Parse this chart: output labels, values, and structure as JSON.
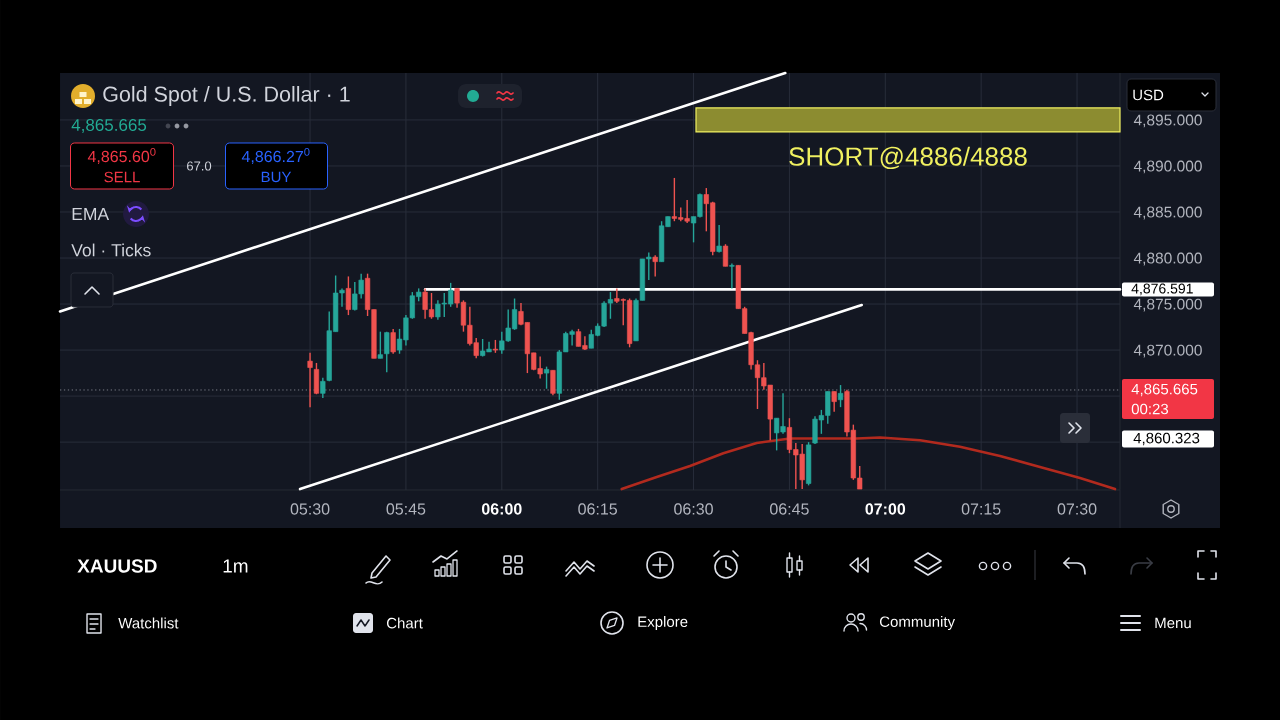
{
  "chart_data": {
    "type": "candlestick",
    "title": "Gold Spot / U.S. Dollar · 1",
    "xlim": [
      4.848,
      7.612
    ],
    "ylim": [
      4854.8,
      4900.1
    ],
    "xticks": [
      {
        "value": 5.5,
        "label": "05:30"
      },
      {
        "value": 5.75,
        "label": "05:45"
      },
      {
        "value": 6,
        "label": "06:00"
      },
      {
        "value": 6.25,
        "label": "06:15"
      },
      {
        "value": 6.5,
        "label": "06:30"
      },
      {
        "value": 6.75,
        "label": "06:45"
      },
      {
        "value": 7,
        "label": "07:00"
      },
      {
        "value": 7.25,
        "label": "07:15"
      },
      {
        "value": 7.5,
        "label": "07:30"
      }
    ],
    "yticks": [
      {
        "value": 4860,
        "label": null
      },
      {
        "value": 4865,
        "label": null
      },
      {
        "value": 4870,
        "label": "4,870.000"
      },
      {
        "value": 4875,
        "label": "4,875.000"
      },
      {
        "value": 4880,
        "label": "4,880.000"
      },
      {
        "value": 4885,
        "label": "4,885.000"
      },
      {
        "value": 4890,
        "label": "4,890.000"
      },
      {
        "value": 4895,
        "label": "4,895.000"
      }
    ],
    "grid": true,
    "x": [
      5.5,
      5.5167,
      5.5333,
      5.55,
      5.5667,
      5.5833,
      5.6,
      5.6167,
      5.6333,
      5.65,
      5.6667,
      5.6833,
      5.7,
      5.7167,
      5.7333,
      5.75,
      5.7667,
      5.7833,
      5.8,
      5.8167,
      5.8333,
      5.85,
      5.8667,
      5.8833,
      5.9,
      5.9167,
      5.9333,
      5.95,
      5.9667,
      5.9833,
      6.0,
      6.0167,
      6.0333,
      6.05,
      6.0667,
      6.0833,
      6.1,
      6.1167,
      6.1333,
      6.15,
      6.1667,
      6.1833,
      6.2,
      6.2167,
      6.2333,
      6.25,
      6.2667,
      6.2833,
      6.3,
      6.3167,
      6.3333,
      6.35,
      6.3667,
      6.3833,
      6.4,
      6.4167,
      6.4333,
      6.45,
      6.4667,
      6.4833,
      6.5,
      6.5167,
      6.5333,
      6.55,
      6.5667,
      6.5833,
      6.6,
      6.6167,
      6.6333,
      6.65,
      6.6667,
      6.6833,
      6.7,
      6.7167,
      6.7333,
      6.75,
      6.7667,
      6.7833,
      6.8,
      6.8167,
      6.8333,
      6.85,
      6.8667,
      6.8833,
      6.9,
      6.9167,
      6.9333
    ],
    "ohlc": [
      [
        4868.8,
        4869.7,
        4863.8,
        4868.1
      ],
      [
        4867.9,
        4868.6,
        4865.2,
        4865.3
      ],
      [
        4865.3,
        4867.0,
        4864.8,
        4866.6
      ],
      [
        4866.7,
        4874.2,
        4866.6,
        4872.1
      ],
      [
        4872.0,
        4878.1,
        4872.0,
        4876.2
      ],
      [
        4876.2,
        4876.7,
        4874.7,
        4876.5
      ],
      [
        4876.7,
        4878.0,
        4873.8,
        4874.4
      ],
      [
        4874.4,
        4877.4,
        4874.3,
        4876.1
      ],
      [
        4876.1,
        4878.3,
        4875.6,
        4877.6
      ],
      [
        4877.8,
        4878.3,
        4873.7,
        4874.4
      ],
      [
        4874.4,
        4874.4,
        4869.1,
        4869.1
      ],
      [
        4869.1,
        4872.0,
        4869.1,
        4869.5
      ],
      [
        4869.6,
        4872.0,
        4867.6,
        4871.9
      ],
      [
        4871.9,
        4872.3,
        4869.6,
        4869.8
      ],
      [
        4870.0,
        4872.3,
        4869.6,
        4871.2
      ],
      [
        4871.1,
        4873.8,
        4870.5,
        4873.5
      ],
      [
        4873.5,
        4876.3,
        4873.4,
        4875.9
      ],
      [
        4875.8,
        4876.7,
        4875.3,
        4876.3
      ],
      [
        4876.3,
        4876.7,
        4873.4,
        4874.4
      ],
      [
        4874.4,
        4876.2,
        4873.4,
        4873.6
      ],
      [
        4873.6,
        4875.4,
        4873.3,
        4875.0
      ],
      [
        4875.0,
        4876.2,
        4873.6,
        4875.1
      ],
      [
        4875.0,
        4877.3,
        4874.7,
        4876.5
      ],
      [
        4876.7,
        4876.7,
        4874.6,
        4875.1
      ],
      [
        4875.2,
        4875.4,
        4872.0,
        4872.7
      ],
      [
        4872.7,
        4874.7,
        4870.5,
        4870.7
      ],
      [
        4870.8,
        4871.3,
        4869.1,
        4869.4
      ],
      [
        4869.4,
        4871.2,
        4869.3,
        4869.9
      ],
      [
        4869.8,
        4870.9,
        4869.8,
        4870.1
      ],
      [
        4870.1,
        4871.1,
        4869.7,
        4870.0
      ],
      [
        4870.0,
        4872.0,
        4869.6,
        4871.0
      ],
      [
        4871.0,
        4874.4,
        4870.9,
        4872.4
      ],
      [
        4872.3,
        4875.6,
        4872.2,
        4874.4
      ],
      [
        4874.2,
        4875.1,
        4872.7,
        4872.8
      ],
      [
        4873.0,
        4873.0,
        4867.5,
        4869.6
      ],
      [
        4869.7,
        4869.7,
        4867.8,
        4867.9
      ],
      [
        4868.0,
        4869.3,
        4866.9,
        4867.4
      ],
      [
        4867.5,
        4868.2,
        4865.8,
        4867.9
      ],
      [
        4867.8,
        4867.8,
        4865.1,
        4865.3
      ],
      [
        4865.3,
        4870.0,
        4864.6,
        4869.8
      ],
      [
        4869.8,
        4872.0,
        4869.8,
        4871.8
      ],
      [
        4871.7,
        4872.2,
        4870.5,
        4872.0
      ],
      [
        4872.0,
        4872.3,
        4870.4,
        4870.4
      ],
      [
        4870.5,
        4871.5,
        4870.0,
        4870.1
      ],
      [
        4870.2,
        4872.2,
        4870.2,
        4871.7
      ],
      [
        4871.6,
        4872.9,
        4871.5,
        4872.6
      ],
      [
        4872.6,
        4875.3,
        4872.5,
        4875.1
      ],
      [
        4875.1,
        4876.3,
        4873.4,
        4875.5
      ],
      [
        4875.6,
        4876.7,
        4875.1,
        4875.3
      ],
      [
        4875.5,
        4875.6,
        4872.7,
        4875.4
      ],
      [
        4875.4,
        4875.6,
        4870.3,
        4870.7
      ],
      [
        4871.0,
        4875.6,
        4871.0,
        4875.4
      ],
      [
        4875.4,
        4879.9,
        4875.4,
        4879.9
      ],
      [
        4879.9,
        4880.6,
        4877.6,
        4880.1
      ],
      [
        4880.1,
        4880.3,
        4878.0,
        4879.6
      ],
      [
        4879.6,
        4884.0,
        4879.6,
        4883.5
      ],
      [
        4883.4,
        4884.5,
        4883.4,
        4884.5
      ],
      [
        4884.5,
        4888.7,
        4884.0,
        4884.3
      ],
      [
        4884.4,
        4885.5,
        4884.0,
        4884.2
      ],
      [
        4884.3,
        4886.3,
        4883.8,
        4884.0
      ],
      [
        4883.8,
        4884.5,
        4881.7,
        4884.5
      ],
      [
        4884.5,
        4887.0,
        4884.4,
        4886.9
      ],
      [
        4886.9,
        4887.6,
        4882.9,
        4885.9
      ],
      [
        4886.0,
        4886.1,
        4880.3,
        4880.7
      ],
      [
        4880.7,
        4883.6,
        4880.6,
        4881.3
      ],
      [
        4881.3,
        4881.5,
        4879.1,
        4879.1
      ],
      [
        4879.1,
        4879.4,
        4876.7,
        4879.2
      ],
      [
        4879.2,
        4879.2,
        4874.5,
        4874.5
      ],
      [
        4874.5,
        4874.7,
        4871.8,
        4871.8
      ],
      [
        4871.9,
        4872.0,
        4867.9,
        4868.4
      ],
      [
        4868.4,
        4868.9,
        4863.6,
        4867.0
      ],
      [
        4867.0,
        4868.6,
        4865.7,
        4866.1
      ],
      [
        4866.2,
        4866.2,
        4860.2,
        4862.5
      ],
      [
        4861.0,
        4862.6,
        4859.1,
        4862.6
      ],
      [
        4861.1,
        4865.3,
        4860.9,
        4861.7
      ],
      [
        4861.6,
        4862.6,
        4858.8,
        4859.2
      ],
      [
        4859.2,
        4859.9,
        4854.9,
        4858.6
      ],
      [
        4858.7,
        4859.8,
        4854.9,
        4855.9
      ],
      [
        4855.5,
        4860.0,
        4855.3,
        4859.7
      ],
      [
        4859.9,
        4862.8,
        4859.8,
        4862.5
      ],
      [
        4862.4,
        4863.5,
        4860.9,
        4862.9
      ],
      [
        4862.9,
        4865.5,
        4862.0,
        4865.5
      ],
      [
        4865.5,
        4865.5,
        4863.3,
        4864.4
      ],
      [
        4864.6,
        4866.2,
        4863.8,
        4865.3
      ],
      [
        4865.5,
        4865.7,
        4860.6,
        4861.1
      ],
      [
        4861.3,
        4861.9,
        4855.9,
        4856.1
      ],
      [
        4856.1,
        4857.4,
        4854.9,
        4854.9
      ]
    ],
    "colors": [
      "#ef5350",
      "#ef5350",
      "#26a69a",
      "#26a69a",
      "#26a69a",
      "#26a69a",
      "#ef5350",
      "#26a69a",
      "#26a69a",
      "#ef5350",
      "#ef5350",
      "#26a69a",
      "#26a69a",
      "#ef5350",
      "#26a69a",
      "#26a69a",
      "#26a69a",
      "#26a69a",
      "#ef5350",
      "#ef5350",
      "#26a69a",
      "#26a69a",
      "#26a69a",
      "#ef5350",
      "#ef5350",
      "#ef5350",
      "#ef5350",
      "#26a69a",
      "#26a69a",
      "#ef5350",
      "#26a69a",
      "#26a69a",
      "#26a69a",
      "#ef5350",
      "#ef5350",
      "#ef5350",
      "#ef5350",
      "#26a69a",
      "#ef5350",
      "#26a69a",
      "#26a69a",
      "#26a69a",
      "#ef5350",
      "#ef5350",
      "#26a69a",
      "#26a69a",
      "#26a69a",
      "#26a69a",
      "#ef5350",
      "#ef5350",
      "#ef5350",
      "#26a69a",
      "#26a69a",
      "#26a69a",
      "#ef5350",
      "#26a69a",
      "#26a69a",
      "#ef5350",
      "#ef5350",
      "#ef5350",
      "#26a69a",
      "#26a69a",
      "#ef5350",
      "#ef5350",
      "#26a69a",
      "#ef5350",
      "#26a69a",
      "#ef5350",
      "#ef5350",
      "#ef5350",
      "#ef5350",
      "#ef5350",
      "#ef5350",
      "#26a69a",
      "#26a69a",
      "#ef5350",
      "#ef5350",
      "#ef5350",
      "#26a69a",
      "#26a69a",
      "#26a69a",
      "#26a69a",
      "#ef5350",
      "#26a69a",
      "#ef5350",
      "#ef5350",
      "#ef5350"
    ],
    "series": [
      {
        "type": "line",
        "x": [
          6.3127,
          6.404,
          6.4908,
          6.5777,
          6.6647,
          6.7169,
          6.7516,
          6.8384,
          6.9255,
          6.9862,
          7.0905,
          7.1948,
          7.2991,
          7.4034,
          7.5077,
          7.599
        ],
        "values": [
          4854.9,
          4856.2,
          4857.4,
          4858.8,
          4859.9,
          4860.2,
          4860.4,
          4860.4,
          4860.4,
          4860.5,
          4860.2,
          4859.5,
          4858.5,
          4857.3,
          4856.1,
          4854.9
        ],
        "color": "#b22a1e"
      },
      {
        "type": "line",
        "x": [
          4.848,
          6.7391
        ],
        "values": [
          4874.2,
          4900.1
        ],
        "color": "#ffffff"
      },
      {
        "type": "line",
        "x": [
          5.4739,
          6.9385
        ],
        "values": [
          4854.9,
          4874.9
        ],
        "color": "#ffffff"
      },
      {
        "type": "line",
        "x": [
          5.8,
          7.612
        ],
        "values": [
          4876.591,
          4876.591
        ],
        "color": "#ffffff",
        "value_labels": [
          null,
          "4,876.591"
        ]
      }
    ],
    "ref_lines": [
      {
        "axis": "y",
        "value": 4865.665,
        "label": "4,865.665",
        "color": "#787b86",
        "line_style": "dotted"
      }
    ],
    "bands": [
      {
        "axis": "y",
        "from": 4893.7,
        "to": 4896.3,
        "label": "SHORT@4886/4888",
        "color": "#8c8c30"
      }
    ],
    "annotations": [
      "4,865.665",
      "4,865.60$^{0}$",
      "SELL",
      "67.0",
      "4,866.27$^{0}$",
      "BUY",
      "EMA",
      "Vol · Ticks",
      "USD",
      "00:23",
      "XAUUSD",
      "1m",
      "Watchlist",
      "Chart",
      "Explore",
      "Community",
      "Menu",
      "4,860.323"
    ]
  }
}
